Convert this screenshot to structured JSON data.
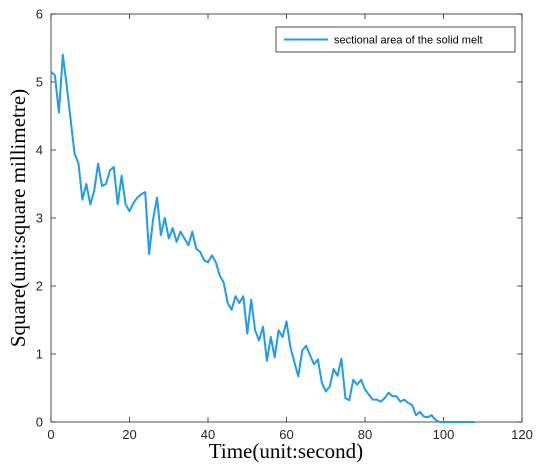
{
  "chart_data": {
    "type": "line",
    "xlabel": "Time(unit:second)",
    "ylabel": "Square(unit:square millimetre)",
    "xlim": [
      0,
      120
    ],
    "ylim": [
      0,
      6
    ],
    "xticks": [
      0,
      20,
      40,
      60,
      80,
      100,
      120
    ],
    "yticks": [
      0,
      1,
      2,
      3,
      4,
      5,
      6
    ],
    "grid": false,
    "legend_position": "top-right",
    "series": [
      {
        "name": "sectional area of the solid melt",
        "color": "#1f9bf0",
        "x": [
          0,
          1,
          2,
          3,
          4,
          5,
          6,
          7,
          8,
          9,
          10,
          11,
          12,
          13,
          14,
          15,
          16,
          17,
          18,
          19,
          20,
          21,
          22,
          23,
          24,
          25,
          26,
          27,
          28,
          29,
          30,
          31,
          32,
          33,
          34,
          35,
          36,
          37,
          38,
          39,
          40,
          41,
          42,
          43,
          44,
          45,
          46,
          47,
          48,
          49,
          50,
          51,
          52,
          53,
          54,
          55,
          56,
          57,
          58,
          59,
          60,
          61,
          62,
          63,
          64,
          65,
          66,
          67,
          68,
          69,
          70,
          71,
          72,
          73,
          74,
          75,
          76,
          77,
          78,
          79,
          80,
          81,
          82,
          83,
          84,
          85,
          86,
          87,
          88,
          89,
          90,
          91,
          92,
          93,
          94,
          95,
          96,
          97,
          98,
          99,
          100,
          101,
          102,
          103,
          104,
          105,
          106,
          107,
          108
        ],
        "y": [
          5.15,
          5.1,
          4.55,
          5.4,
          4.95,
          4.45,
          3.95,
          3.8,
          3.27,
          3.5,
          3.2,
          3.4,
          3.8,
          3.47,
          3.5,
          3.7,
          3.75,
          3.2,
          3.62,
          3.2,
          3.1,
          3.22,
          3.3,
          3.35,
          3.38,
          2.47,
          2.98,
          3.3,
          2.75,
          3.0,
          2.7,
          2.85,
          2.65,
          2.8,
          2.7,
          2.6,
          2.8,
          2.55,
          2.5,
          2.38,
          2.35,
          2.45,
          2.35,
          2.15,
          2.05,
          1.75,
          1.65,
          1.85,
          1.75,
          1.85,
          1.3,
          1.8,
          1.35,
          1.2,
          1.4,
          0.9,
          1.25,
          0.95,
          1.35,
          1.25,
          1.48,
          1.1,
          0.88,
          0.67,
          1.05,
          1.12,
          0.98,
          0.85,
          0.92,
          0.58,
          0.45,
          0.52,
          0.78,
          0.68,
          0.93,
          0.35,
          0.32,
          0.62,
          0.55,
          0.62,
          0.48,
          0.4,
          0.33,
          0.33,
          0.3,
          0.35,
          0.43,
          0.38,
          0.38,
          0.3,
          0.33,
          0.28,
          0.25,
          0.1,
          0.15,
          0.08,
          0.07,
          0.1,
          0.03,
          0.0,
          0.0,
          0.0,
          0.0,
          0.0,
          0.0,
          0.0,
          0.0,
          0.0,
          0.0
        ]
      }
    ]
  }
}
